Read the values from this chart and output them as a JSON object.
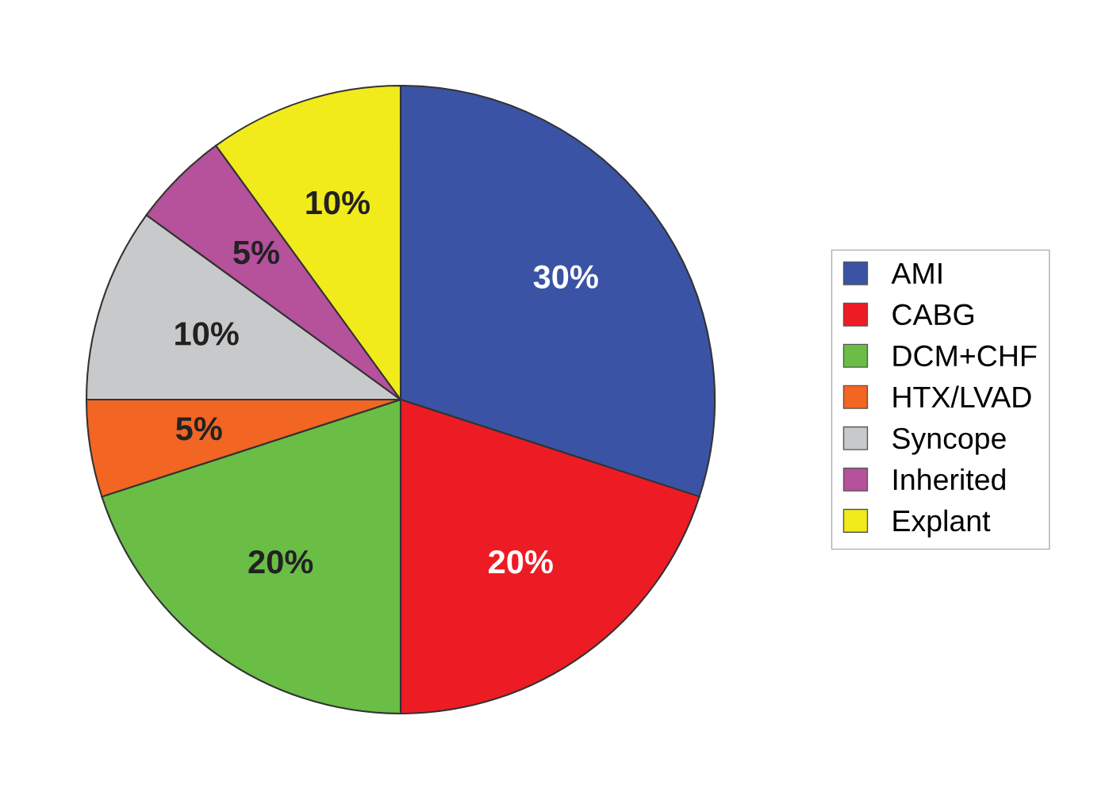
{
  "chart_data": {
    "type": "pie",
    "categories": [
      "AMI",
      "CABG",
      "DCM+CHF",
      "HTX/LVAD",
      "Syncope",
      "Inherited",
      "Explant"
    ],
    "values": [
      30,
      20,
      20,
      5,
      10,
      5,
      10
    ],
    "colors": [
      "#3a53a4",
      "#ed1c24",
      "#6abd45",
      "#f26522",
      "#c8c9cb",
      "#b6519c",
      "#f2eb1c"
    ],
    "value_labels": [
      "30%",
      "20%",
      "20%",
      "5%",
      "10%",
      "5%",
      "10%"
    ],
    "legend": "right"
  }
}
